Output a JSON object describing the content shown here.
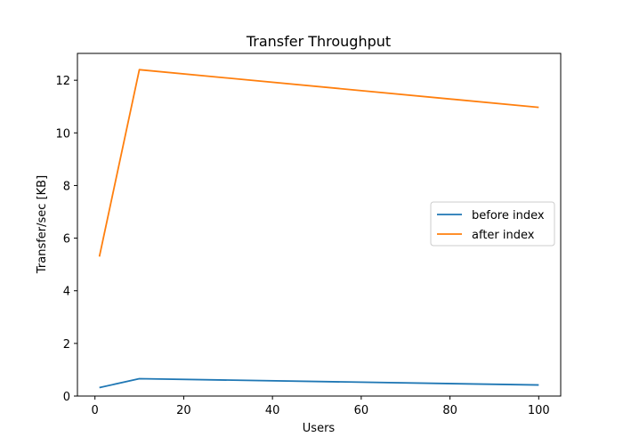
{
  "chart_data": {
    "type": "line",
    "title": "Transfer Throughput",
    "xlabel": "Users",
    "ylabel": "Transfer/sec [KB]",
    "xlim": [
      -3.95,
      104.95
    ],
    "ylim": [
      0,
      13.02
    ],
    "xticks": [
      0,
      20,
      40,
      60,
      80,
      100
    ],
    "yticks": [
      0,
      2,
      4,
      6,
      8,
      10,
      12
    ],
    "grid": false,
    "legend_position": "center-right",
    "series": [
      {
        "name": "before index",
        "color": "#1f77b4",
        "x": [
          1,
          10,
          100
        ],
        "y": [
          0.32,
          0.66,
          0.42
        ]
      },
      {
        "name": "after index",
        "color": "#ff7f0e",
        "x": [
          1,
          10,
          100
        ],
        "y": [
          5.3,
          12.4,
          10.97
        ]
      }
    ]
  }
}
